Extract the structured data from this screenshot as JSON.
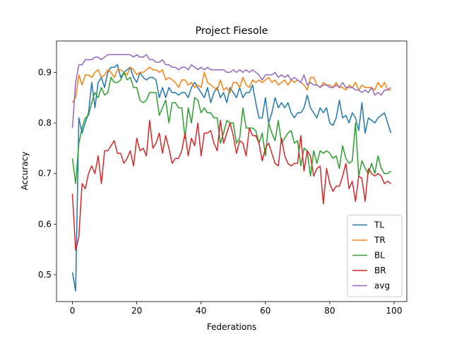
{
  "chart_data": {
    "type": "line",
    "title": "Project Fiesole",
    "x_label": "Federations",
    "y_label": "Accuracy",
    "x": [
      0,
      1,
      2,
      3,
      4,
      5,
      6,
      7,
      8,
      9,
      10,
      11,
      12,
      13,
      14,
      15,
      16,
      17,
      18,
      19,
      20,
      21,
      22,
      23,
      24,
      25,
      26,
      27,
      28,
      29,
      30,
      31,
      32,
      33,
      34,
      35,
      36,
      37,
      38,
      39,
      40,
      41,
      42,
      43,
      44,
      45,
      46,
      47,
      48,
      49,
      50,
      51,
      52,
      53,
      54,
      55,
      56,
      57,
      58,
      59,
      60,
      61,
      62,
      63,
      64,
      65,
      66,
      67,
      68,
      69,
      70,
      71,
      72,
      73,
      74,
      75,
      76,
      77,
      78,
      79,
      80,
      81,
      82,
      83,
      84,
      85,
      86,
      87,
      88,
      89,
      90,
      91,
      92,
      93,
      94,
      95,
      96,
      97,
      98,
      99
    ],
    "xlim": [
      -4.95,
      103.95
    ],
    "xticks": [
      0,
      20,
      40,
      60,
      80,
      100
    ],
    "ylim": [
      0.447,
      0.962
    ],
    "yticks": [
      0.5,
      0.6,
      0.7,
      0.8,
      0.9
    ],
    "legend": "lower right",
    "series": [
      {
        "name": "TL",
        "color": "#1f77b4",
        "values": [
          0.505,
          0.468,
          0.81,
          0.78,
          0.8,
          0.82,
          0.88,
          0.83,
          0.88,
          0.89,
          0.87,
          0.9,
          0.91,
          0.91,
          0.915,
          0.89,
          0.9,
          0.905,
          0.91,
          0.89,
          0.88,
          0.9,
          0.89,
          0.885,
          0.89,
          0.89,
          0.885,
          0.85,
          0.87,
          0.85,
          0.87,
          0.86,
          0.86,
          0.855,
          0.86,
          0.86,
          0.85,
          0.87,
          0.88,
          0.87,
          0.86,
          0.85,
          0.87,
          0.84,
          0.86,
          0.87,
          0.85,
          0.86,
          0.84,
          0.87,
          0.86,
          0.85,
          0.87,
          0.85,
          0.86,
          0.86,
          0.875,
          0.84,
          0.81,
          0.81,
          0.85,
          0.8,
          0.82,
          0.85,
          0.83,
          0.84,
          0.83,
          0.84,
          0.82,
          0.81,
          0.82,
          0.82,
          0.83,
          0.855,
          0.83,
          0.82,
          0.81,
          0.83,
          0.82,
          0.83,
          0.8,
          0.795,
          0.81,
          0.845,
          0.81,
          0.815,
          0.8,
          0.82,
          0.81,
          0.785,
          0.84,
          0.78,
          0.81,
          0.805,
          0.8,
          0.81,
          0.815,
          0.82,
          0.8,
          0.78
        ]
      },
      {
        "name": "TR",
        "color": "#ff7f0e",
        "values": [
          0.84,
          0.85,
          0.895,
          0.875,
          0.895,
          0.895,
          0.89,
          0.9,
          0.905,
          0.89,
          0.895,
          0.905,
          0.9,
          0.89,
          0.905,
          0.905,
          0.9,
          0.895,
          0.91,
          0.905,
          0.895,
          0.9,
          0.9,
          0.905,
          0.91,
          0.905,
          0.905,
          0.9,
          0.905,
          0.885,
          0.89,
          0.885,
          0.88,
          0.87,
          0.885,
          0.885,
          0.875,
          0.88,
          0.87,
          0.875,
          0.87,
          0.9,
          0.88,
          0.875,
          0.87,
          0.865,
          0.885,
          0.865,
          0.87,
          0.86,
          0.88,
          0.88,
          0.87,
          0.89,
          0.875,
          0.87,
          0.885,
          0.88,
          0.885,
          0.88,
          0.885,
          0.89,
          0.88,
          0.885,
          0.875,
          0.88,
          0.885,
          0.875,
          0.885,
          0.88,
          0.885,
          0.88,
          0.875,
          0.865,
          0.89,
          0.89,
          0.875,
          0.87,
          0.88,
          0.875,
          0.875,
          0.87,
          0.88,
          0.87,
          0.87,
          0.865,
          0.875,
          0.87,
          0.88,
          0.865,
          0.875,
          0.87,
          0.87,
          0.87,
          0.865,
          0.88,
          0.87,
          0.88,
          0.865,
          0.865
        ]
      },
      {
        "name": "BL",
        "color": "#2ca02c",
        "values": [
          0.73,
          0.68,
          0.76,
          0.79,
          0.81,
          0.815,
          0.84,
          0.86,
          0.85,
          0.87,
          0.855,
          0.86,
          0.89,
          0.88,
          0.88,
          0.885,
          0.9,
          0.885,
          0.89,
          0.87,
          0.87,
          0.845,
          0.84,
          0.845,
          0.86,
          0.86,
          0.86,
          0.815,
          0.83,
          0.845,
          0.8,
          0.84,
          0.84,
          0.83,
          0.83,
          0.77,
          0.83,
          0.8,
          0.85,
          0.845,
          0.82,
          0.83,
          0.82,
          0.82,
          0.81,
          0.81,
          0.76,
          0.78,
          0.805,
          0.8,
          0.8,
          0.76,
          0.77,
          0.83,
          0.79,
          0.79,
          0.79,
          0.785,
          0.76,
          0.78,
          0.735,
          0.8,
          0.78,
          0.765,
          0.805,
          0.76,
          0.77,
          0.78,
          0.785,
          0.76,
          0.765,
          0.715,
          0.75,
          0.745,
          0.695,
          0.745,
          0.72,
          0.745,
          0.74,
          0.745,
          0.74,
          0.73,
          0.735,
          0.71,
          0.755,
          0.73,
          0.72,
          0.725,
          0.8,
          0.695,
          0.725,
          0.71,
          0.7,
          0.72,
          0.7,
          0.735,
          0.71,
          0.7,
          0.7,
          0.705
        ]
      },
      {
        "name": "BR",
        "color": "#d62728",
        "values": [
          0.66,
          0.548,
          0.575,
          0.68,
          0.67,
          0.7,
          0.715,
          0.7,
          0.735,
          0.68,
          0.745,
          0.745,
          0.755,
          0.765,
          0.74,
          0.74,
          0.72,
          0.73,
          0.745,
          0.715,
          0.77,
          0.745,
          0.75,
          0.735,
          0.805,
          0.75,
          0.76,
          0.78,
          0.74,
          0.775,
          0.75,
          0.72,
          0.73,
          0.73,
          0.745,
          0.78,
          0.735,
          0.77,
          0.755,
          0.8,
          0.735,
          0.78,
          0.78,
          0.785,
          0.76,
          0.745,
          0.805,
          0.76,
          0.78,
          0.8,
          0.775,
          0.74,
          0.765,
          0.76,
          0.735,
          0.79,
          0.775,
          0.775,
          0.76,
          0.725,
          0.75,
          0.76,
          0.74,
          0.72,
          0.715,
          0.77,
          0.735,
          0.72,
          0.715,
          0.72,
          0.72,
          0.775,
          0.705,
          0.745,
          0.735,
          0.695,
          0.71,
          0.715,
          0.64,
          0.71,
          0.68,
          0.665,
          0.675,
          0.675,
          0.695,
          0.72,
          0.67,
          0.685,
          0.645,
          0.695,
          0.69,
          0.645,
          0.71,
          0.7,
          0.695,
          0.7,
          0.695,
          0.68,
          0.685,
          0.68
        ]
      },
      {
        "name": "avg",
        "color": "#9467bd",
        "values": [
          0.79,
          0.88,
          0.915,
          0.915,
          0.925,
          0.925,
          0.925,
          0.93,
          0.93,
          0.925,
          0.93,
          0.935,
          0.935,
          0.935,
          0.935,
          0.935,
          0.935,
          0.935,
          0.935,
          0.93,
          0.935,
          0.93,
          0.93,
          0.935,
          0.925,
          0.925,
          0.92,
          0.92,
          0.925,
          0.915,
          0.915,
          0.91,
          0.91,
          0.905,
          0.91,
          0.91,
          0.905,
          0.915,
          0.91,
          0.905,
          0.91,
          0.905,
          0.91,
          0.905,
          0.905,
          0.905,
          0.905,
          0.905,
          0.9,
          0.9,
          0.905,
          0.9,
          0.905,
          0.9,
          0.905,
          0.9,
          0.905,
          0.9,
          0.895,
          0.885,
          0.895,
          0.895,
          0.895,
          0.9,
          0.89,
          0.895,
          0.89,
          0.895,
          0.885,
          0.89,
          0.885,
          0.88,
          0.895,
          0.875,
          0.88,
          0.875,
          0.875,
          0.87,
          0.875,
          0.875,
          0.87,
          0.87,
          0.875,
          0.87,
          0.88,
          0.87,
          0.87,
          0.87,
          0.865,
          0.865,
          0.86,
          0.865,
          0.86,
          0.87,
          0.855,
          0.86,
          0.855,
          0.865,
          0.865,
          0.87
        ]
      }
    ]
  }
}
